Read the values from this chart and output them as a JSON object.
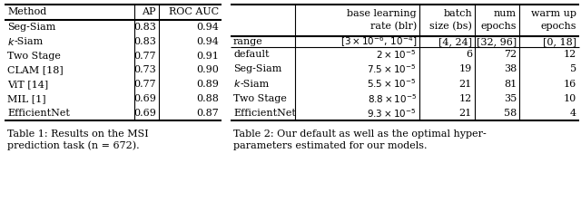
{
  "table1": {
    "headers": [
      "Method",
      "AP",
      "ROC AUC"
    ],
    "rows": [
      [
        "Seg-Siam",
        "0.83",
        "0.94"
      ],
      [
        "k-Siam",
        "0.83",
        "0.94"
      ],
      [
        "Two Stage",
        "0.77",
        "0.91"
      ],
      [
        "CLAM [18]",
        "0.73",
        "0.90"
      ],
      [
        "ViT [14]",
        "0.77",
        "0.89"
      ],
      [
        "MIL [1]",
        "0.69",
        "0.88"
      ],
      [
        "EfficientNet",
        "0.69",
        "0.87"
      ]
    ],
    "caption1": "Table 1: Results on the MSI",
    "caption2": "prediction task (n = 672)."
  },
  "table2": {
    "header1": [
      "base learning",
      "batch",
      "num",
      "warm up"
    ],
    "header2": [
      "rate (blr)",
      "size (bs)",
      "epochs",
      "epochs"
    ],
    "range_label": "range",
    "range_blr": "$[3\\times10^{-6},\\,10^{-4}]$",
    "range_bs": "[4, 24]",
    "range_ne": "[32, 96]",
    "range_wu": "[0, 18]",
    "row_labels": [
      "default",
      "Seg-Siam",
      "k-Siam",
      "Two Stage",
      "EfficientNet"
    ],
    "blr_values": [
      "$2\\times10^{-5}$",
      "$7.5\\times10^{-5}$",
      "$5.5\\times10^{-5}$",
      "$8.8\\times10^{-5}$",
      "$9.3\\times10^{-5}$"
    ],
    "bs_values": [
      "6",
      "19",
      "21",
      "12",
      "21"
    ],
    "ne_values": [
      "72",
      "38",
      "81",
      "35",
      "58"
    ],
    "wu_values": [
      "12",
      "5",
      "16",
      "10",
      "4"
    ],
    "caption1": "Table 2: Our default as well as the optimal hyper-",
    "caption2": "parameters estimated for our models."
  },
  "bg_color": "#ffffff",
  "text_color": "#000000",
  "fs": 8.0,
  "cfs": 8.0
}
